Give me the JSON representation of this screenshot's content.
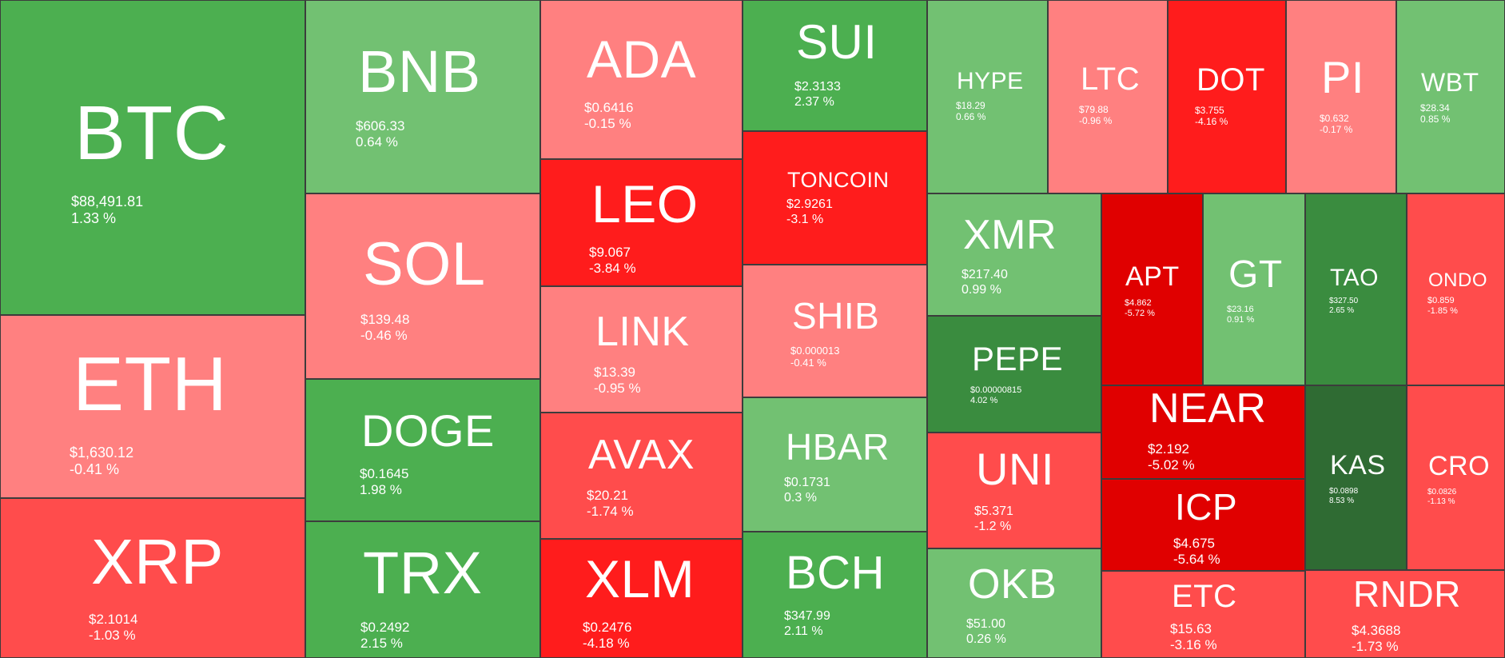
{
  "colors": {
    "dark_green": "#2f6b33",
    "medium_green": "#3a8c3f",
    "green": "#4caf50",
    "light_green": "#72c172",
    "light_red": "#ff8080",
    "red": "#ff4c4c",
    "bright_red": "#ff1c1c",
    "dark_red": "#e00000",
    "border": "#3c3c3c"
  },
  "chart_data": {
    "type": "treemap",
    "title": "",
    "value_unit": "USD",
    "color_metric": "24h change %",
    "items": [
      {
        "symbol": "BTC",
        "price": "$88,491.81",
        "change": "1.33 %",
        "change_value": 1.33
      },
      {
        "symbol": "ETH",
        "price": "$1,630.12",
        "change": "-0.41 %",
        "change_value": -0.41
      },
      {
        "symbol": "XRP",
        "price": "$2.1014",
        "change": "-1.03 %",
        "change_value": -1.03
      },
      {
        "symbol": "BNB",
        "price": "$606.33",
        "change": "0.64 %",
        "change_value": 0.64
      },
      {
        "symbol": "SOL",
        "price": "$139.48",
        "change": "-0.46 %",
        "change_value": -0.46
      },
      {
        "symbol": "DOGE",
        "price": "$0.1645",
        "change": "1.98 %",
        "change_value": 1.98
      },
      {
        "symbol": "TRX",
        "price": "$0.2492",
        "change": "2.15 %",
        "change_value": 2.15
      },
      {
        "symbol": "ADA",
        "price": "$0.6416",
        "change": "-0.15 %",
        "change_value": -0.15
      },
      {
        "symbol": "LEO",
        "price": "$9.067",
        "change": "-3.84 %",
        "change_value": -3.84
      },
      {
        "symbol": "LINK",
        "price": "$13.39",
        "change": "-0.95 %",
        "change_value": -0.95
      },
      {
        "symbol": "AVAX",
        "price": "$20.21",
        "change": "-1.74 %",
        "change_value": -1.74
      },
      {
        "symbol": "XLM",
        "price": "$0.2476",
        "change": "-4.18 %",
        "change_value": -4.18
      },
      {
        "symbol": "SUI",
        "price": "$2.3133",
        "change": "2.37 %",
        "change_value": 2.37
      },
      {
        "symbol": "TONCOIN",
        "price": "$2.9261",
        "change": "-3.1 %",
        "change_value": -3.1
      },
      {
        "symbol": "SHIB",
        "price": "$0.000013",
        "change": "-0.41 %",
        "change_value": -0.41
      },
      {
        "symbol": "HBAR",
        "price": "$0.1731",
        "change": "0.3 %",
        "change_value": 0.3
      },
      {
        "symbol": "BCH",
        "price": "$347.99",
        "change": "2.11 %",
        "change_value": 2.11
      },
      {
        "symbol": "HYPE",
        "price": "$18.29",
        "change": "0.66 %",
        "change_value": 0.66
      },
      {
        "symbol": "LTC",
        "price": "$79.88",
        "change": "-0.96 %",
        "change_value": -0.96
      },
      {
        "symbol": "DOT",
        "price": "$3.755",
        "change": "-4.16 %",
        "change_value": -4.16
      },
      {
        "symbol": "PI",
        "price": "$0.632",
        "change": "-0.17 %",
        "change_value": -0.17
      },
      {
        "symbol": "WBT",
        "price": "$28.34",
        "change": "0.85 %",
        "change_value": 0.85
      },
      {
        "symbol": "XMR",
        "price": "$217.40",
        "change": "0.99 %",
        "change_value": 0.99
      },
      {
        "symbol": "PEPE",
        "price": "$0.00000815",
        "change": "4.02 %",
        "change_value": 4.02
      },
      {
        "symbol": "UNI",
        "price": "$5.371",
        "change": "-1.2 %",
        "change_value": -1.2
      },
      {
        "symbol": "OKB",
        "price": "$51.00",
        "change": "0.26 %",
        "change_value": 0.26
      },
      {
        "symbol": "APT",
        "price": "$4.862",
        "change": "-5.72 %",
        "change_value": -5.72
      },
      {
        "symbol": "GT",
        "price": "$23.16",
        "change": "0.91 %",
        "change_value": 0.91
      },
      {
        "symbol": "TAO",
        "price": "$327.50",
        "change": "2.65 %",
        "change_value": 2.65
      },
      {
        "symbol": "ONDO",
        "price": "$0.859",
        "change": "-1.85 %",
        "change_value": -1.85
      },
      {
        "symbol": "NEAR",
        "price": "$2.192",
        "change": "-5.02 %",
        "change_value": -5.02
      },
      {
        "symbol": "ICP",
        "price": "$4.675",
        "change": "-5.64 %",
        "change_value": -5.64
      },
      {
        "symbol": "ETC",
        "price": "$15.63",
        "change": "-3.16 %",
        "change_value": -3.16
      },
      {
        "symbol": "KAS",
        "price": "$0.0898",
        "change": "8.53 %",
        "change_value": 8.53
      },
      {
        "symbol": "CRO",
        "price": "$0.0826",
        "change": "-1.13 %",
        "change_value": -1.13
      },
      {
        "symbol": "RNDR",
        "price": "$4.3688",
        "change": "-1.73 %",
        "change_value": -1.73
      }
    ]
  }
}
